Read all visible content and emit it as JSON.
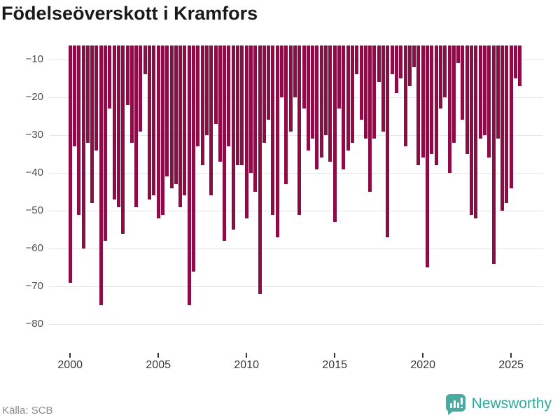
{
  "title": "Födelseöverskott i Kramfors",
  "source": "Källa: SCB",
  "branding": {
    "name": "Newsworthy"
  },
  "colors": {
    "bar": "#8e0c45",
    "grid": "#e6e6e6",
    "title_text": "#1a1a1a",
    "axis_text": "#4d4d4d",
    "x_axis_text": "#383838",
    "source_text": "#8c8c8c",
    "brand_teal_text": "#2ea89b",
    "brand_teal_icon": "#48aba2"
  },
  "chart_data": {
    "type": "bar",
    "title": "Födelseöverskott i Kramfors",
    "frequency": "quarterly",
    "x_start": "2000 Q1",
    "x_end": "2025 Q3",
    "x_ticks": [
      2000,
      2005,
      2010,
      2015,
      2020,
      2025
    ],
    "y_ticks": [
      -10,
      -20,
      -30,
      -40,
      -50,
      -60,
      -70,
      -80
    ],
    "y_tick_labels": [
      "−10",
      "−20",
      "−30",
      "−40",
      "−50",
      "−60",
      "−70",
      "−80"
    ],
    "ylim_top": -6.3,
    "grid": true,
    "legend": "none",
    "values": [
      -69,
      -33,
      -51,
      -60,
      -32,
      -48,
      -34,
      -75,
      -58,
      -23,
      -47,
      -49,
      -56,
      -22,
      -32,
      -49,
      -29,
      -14,
      -47,
      -46,
      -52,
      -51,
      -41,
      -44,
      -43,
      -49,
      -46,
      -75,
      -66,
      -33,
      -38,
      -30,
      -46,
      -27,
      -37,
      -58,
      -33,
      -55,
      -38,
      -38,
      -52,
      -40,
      -45,
      -72,
      -32,
      -26,
      -51,
      -57,
      -20,
      -43,
      -29,
      -20,
      -51,
      -23,
      -34,
      -31,
      -39,
      -36,
      -30,
      -37,
      -53,
      -23,
      -39,
      -34,
      -32,
      -14,
      -26,
      -31,
      -45,
      -31,
      -16,
      -29,
      -57,
      -14,
      -19,
      -15,
      -33,
      -17,
      -12,
      -38,
      -36,
      -65,
      -35,
      -38,
      -23,
      -20,
      -40,
      -32,
      -11,
      -26,
      -35,
      -51,
      -52,
      -31,
      -30,
      -36,
      -64,
      -31,
      -50,
      -48,
      -44,
      -15,
      -17
    ]
  }
}
